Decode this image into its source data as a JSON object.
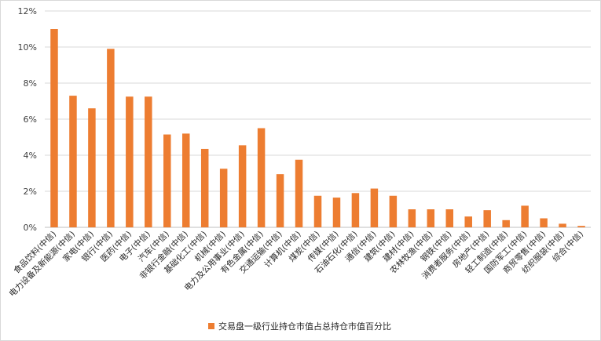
{
  "chart_data": {
    "type": "bar",
    "categories": [
      "食品饮料(中信)",
      "电力设备及新能源(中信)",
      "家电(中信)",
      "银行(中信)",
      "医药(中信)",
      "电子(中信)",
      "汽车(中信)",
      "非银行金融(中信)",
      "基础化工(中信)",
      "机械(中信)",
      "电力及公用事业(中信)",
      "有色金属(中信)",
      "交通运输(中信)",
      "计算机(中信)",
      "煤炭(中信)",
      "传媒(中信)",
      "石油石化(中信)",
      "通信(中信)",
      "建筑(中信)",
      "建材(中信)",
      "农林牧渔(中信)",
      "钢铁(中信)",
      "消费者服务(中信)",
      "房地产(中信)",
      "轻工制造(中信)",
      "国防军工(中信)",
      "商贸零售(中信)",
      "纺织服装(中信)",
      "综合(中信)"
    ],
    "series": [
      {
        "name": "交易盘一级行业持仓市值占总持仓市值百分比",
        "values": [
          11.0,
          7.3,
          6.6,
          9.9,
          7.25,
          7.25,
          5.15,
          5.2,
          4.35,
          3.25,
          4.55,
          5.5,
          2.95,
          3.75,
          1.75,
          1.65,
          1.9,
          2.15,
          1.75,
          1.0,
          1.0,
          1.0,
          0.6,
          0.95,
          0.4,
          1.2,
          0.5,
          0.2,
          0.08
        ]
      }
    ],
    "yticks": [
      "0%",
      "2%",
      "4%",
      "6%",
      "8%",
      "10%",
      "12%"
    ],
    "ylim": [
      0,
      12
    ],
    "grid": true,
    "legend_position": "bottom",
    "bar_color": "#ED7D31"
  }
}
